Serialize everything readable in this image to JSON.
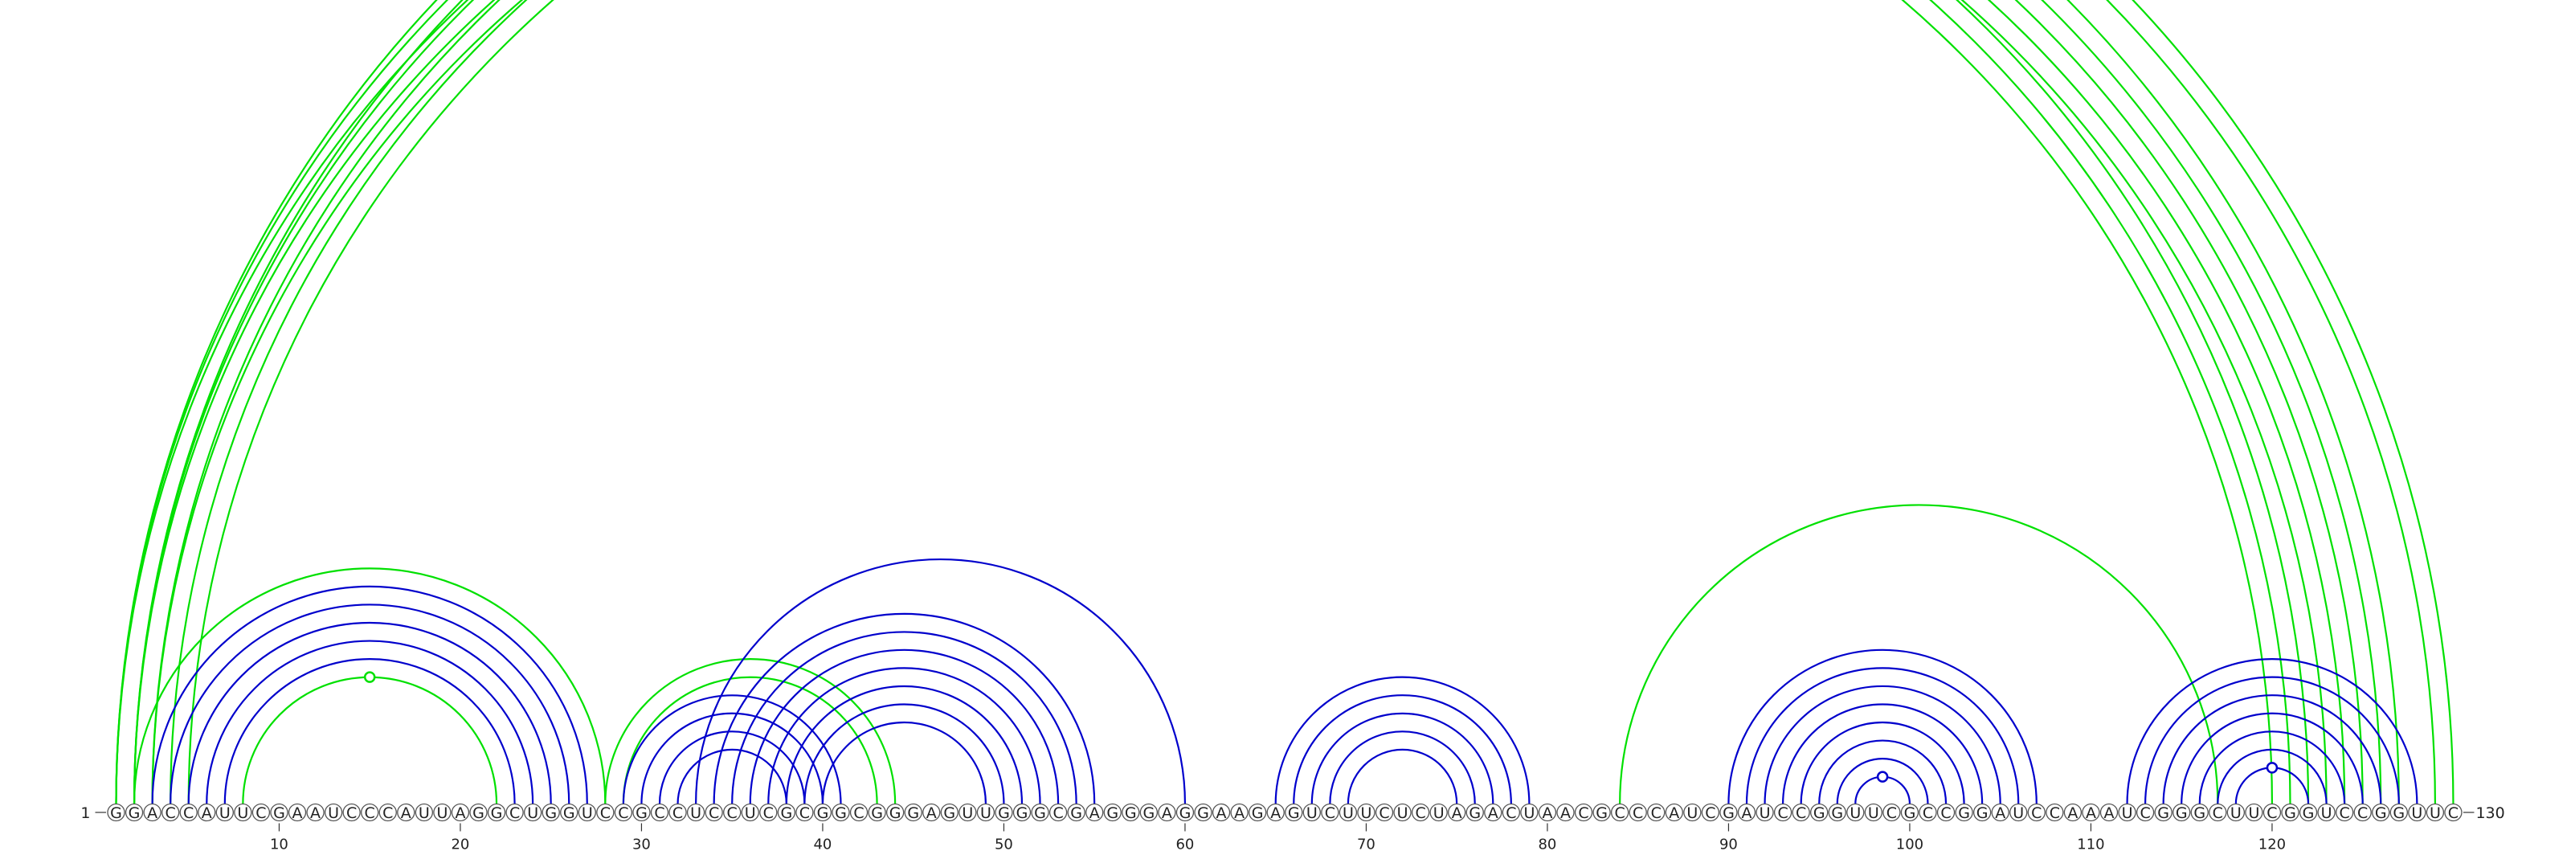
{
  "sequence": "GGACCAUUCGAAUCCCAUUAGGCUGGUCCGCCUCCUCGCGGCGGGAGUUGGGCGAGGGAGGAAGAGUCUUCUCUAGACUAACGCCCAUCGAUCCGGUUCGCCGGAUCCAAAUCGGGCUUCGGUCCGGUUC",
  "start_index": "1",
  "end_index": "130",
  "ticks": [
    "10",
    "20",
    "30",
    "40",
    "50",
    "60",
    "70",
    "80",
    "90",
    "100",
    "110",
    "120"
  ],
  "colors": {
    "green": "#00e000",
    "blue": "#0000cc"
  },
  "helices": [
    {
      "color": "green",
      "pairs": [
        [
          1,
          122
        ],
        [
          2,
          121
        ],
        [
          3,
          120
        ]
      ]
    },
    {
      "color": "green",
      "pairs": [
        [
          1,
          127
        ],
        [
          2,
          126
        ],
        [
          3,
          125
        ],
        [
          4,
          124
        ],
        [
          5,
          123
        ]
      ]
    },
    {
      "color": "green",
      "pairs": [
        [
          1,
          130
        ],
        [
          2,
          129
        ]
      ],
      "marker": true
    },
    {
      "color": "green",
      "pairs": [
        [
          2,
          28
        ]
      ]
    },
    {
      "color": "green",
      "pairs": [
        [
          8,
          22
        ]
      ],
      "marker": true
    },
    {
      "color": "blue",
      "pairs": [
        [
          3,
          27
        ],
        [
          4,
          26
        ],
        [
          5,
          25
        ],
        [
          6,
          24
        ],
        [
          7,
          23
        ]
      ]
    },
    {
      "color": "green",
      "pairs": [
        [
          28,
          44
        ],
        [
          29,
          43
        ]
      ]
    },
    {
      "color": "blue",
      "pairs": [
        [
          29,
          41
        ],
        [
          30,
          40
        ],
        [
          31,
          39
        ],
        [
          32,
          38
        ]
      ]
    },
    {
      "color": "blue",
      "pairs": [
        [
          33,
          60
        ],
        [
          34,
          55
        ],
        [
          35,
          54
        ],
        [
          36,
          53
        ],
        [
          37,
          52
        ],
        [
          38,
          51
        ],
        [
          39,
          50
        ],
        [
          40,
          49
        ]
      ]
    },
    {
      "color": "blue",
      "pairs": [
        [
          65,
          79
        ],
        [
          66,
          78
        ],
        [
          67,
          77
        ],
        [
          68,
          76
        ],
        [
          69,
          75
        ]
      ]
    },
    {
      "color": "green",
      "pairs": [
        [
          84,
          117
        ]
      ]
    },
    {
      "color": "blue",
      "pairs": [
        [
          90,
          107
        ],
        [
          91,
          106
        ],
        [
          92,
          105
        ],
        [
          93,
          104
        ],
        [
          94,
          103
        ],
        [
          95,
          102
        ],
        [
          96,
          101
        ],
        [
          97,
          100
        ]
      ],
      "marker": true
    },
    {
      "color": "blue",
      "pairs": [
        [
          112,
          128
        ],
        [
          113,
          127
        ],
        [
          114,
          126
        ],
        [
          115,
          125
        ],
        [
          116,
          124
        ],
        [
          117,
          123
        ],
        [
          118,
          122
        ]
      ],
      "marker": true
    }
  ]
}
